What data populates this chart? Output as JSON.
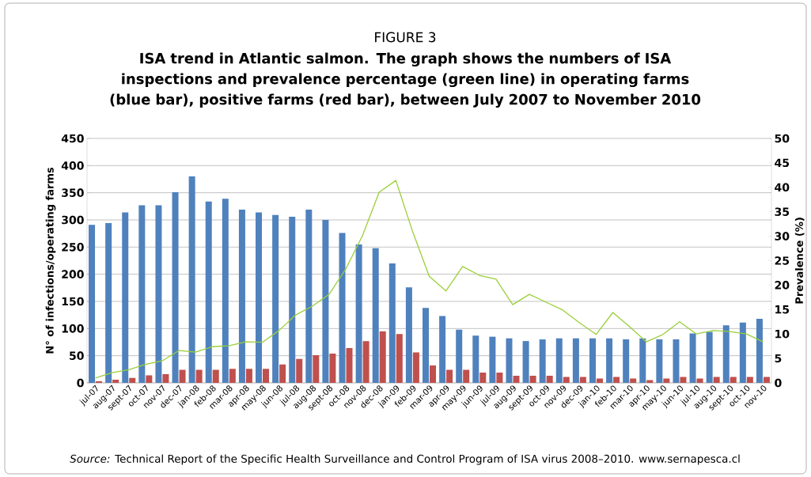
{
  "chart_data": {
    "type": "bar",
    "title": "FIGURE 3",
    "subtitle": "ISA trend in Atlantic salmon. The graph shows the numbers of ISA inspections and prevalence percentage (green line) in operating farms (blue bar), positive farms (red bar), between July 2007 to November 2010",
    "ylabel": "N° of infections/operating farms",
    "y2label": "Prevalence (%)",
    "annotations": [
      "*Source:* Technical Report of the Specific Health Surveillance and Control Program of ISA virus 2008–2010. www.sernapesca.cl"
    ],
    "categories": [
      "jul-07",
      "aug-07",
      "sept-07",
      "oct-07",
      "nov-07",
      "dec-07",
      "jan-08",
      "feb-08",
      "mar-08",
      "apr-08",
      "may-08",
      "jun-08",
      "jul-08",
      "aug-08",
      "sept-08",
      "oct-08",
      "nov-08",
      "dec-08",
      "jan-09",
      "feb-09",
      "mar-09",
      "apr-09",
      "may-09",
      "jun-09",
      "jul-09",
      "aug-09",
      "sept-09",
      "oct-09",
      "nov-09",
      "dec-09",
      "jan-10",
      "feb-10",
      "mar-10",
      "apr-10",
      "may-10",
      "jun-10",
      "jul-10",
      "aug-10",
      "sept-10",
      "oct-10",
      "nov-10"
    ],
    "series": [
      {
        "color": "#4f81bd",
        "values": [
          291,
          294,
          314,
          327,
          327,
          351,
          380,
          334,
          339,
          319,
          314,
          309,
          306,
          319,
          300,
          276,
          255,
          248,
          220,
          176,
          138,
          123,
          98,
          87,
          85,
          82,
          77,
          80,
          82,
          82,
          82,
          82,
          80,
          82,
          80,
          80,
          91,
          94,
          106,
          111,
          118
        ]
      },
      {
        "color": "#c0504d",
        "values": [
          3,
          6,
          9,
          14,
          16,
          24,
          24,
          24,
          26,
          26,
          26,
          34,
          44,
          51,
          54,
          64,
          77,
          95,
          90,
          56,
          32,
          24,
          24,
          19,
          19,
          13,
          13,
          13,
          11,
          11,
          8,
          11,
          8,
          5,
          8,
          11,
          8,
          11,
          11,
          11,
          11
        ]
      },
      {
        "type": "line",
        "axis": "y2",
        "color": "#9bcf3a",
        "values": [
          1,
          2.1,
          2.7,
          3.8,
          4.5,
          6.6,
          6.3,
          7.4,
          7.6,
          8.4,
          8.3,
          10.7,
          13.9,
          15.7,
          18.1,
          23.3,
          30.1,
          39,
          41.4,
          31,
          21.8,
          18.8,
          23.8,
          22,
          21.2,
          16,
          18.1,
          16.5,
          14.9,
          12.3,
          9.9,
          14.4,
          11.5,
          8.4,
          9.9,
          12.5,
          10,
          10.7,
          10.5,
          10,
          8.4
        ]
      }
    ],
    "ylim": [
      0,
      450
    ],
    "yticks": [
      0,
      50,
      100,
      150,
      200,
      250,
      300,
      350,
      400,
      450
    ],
    "y2lim": [
      0,
      50
    ],
    "y2ticks": [
      0,
      5,
      10,
      15,
      20,
      25,
      30,
      35,
      40,
      45,
      50
    ],
    "grid": "y"
  }
}
